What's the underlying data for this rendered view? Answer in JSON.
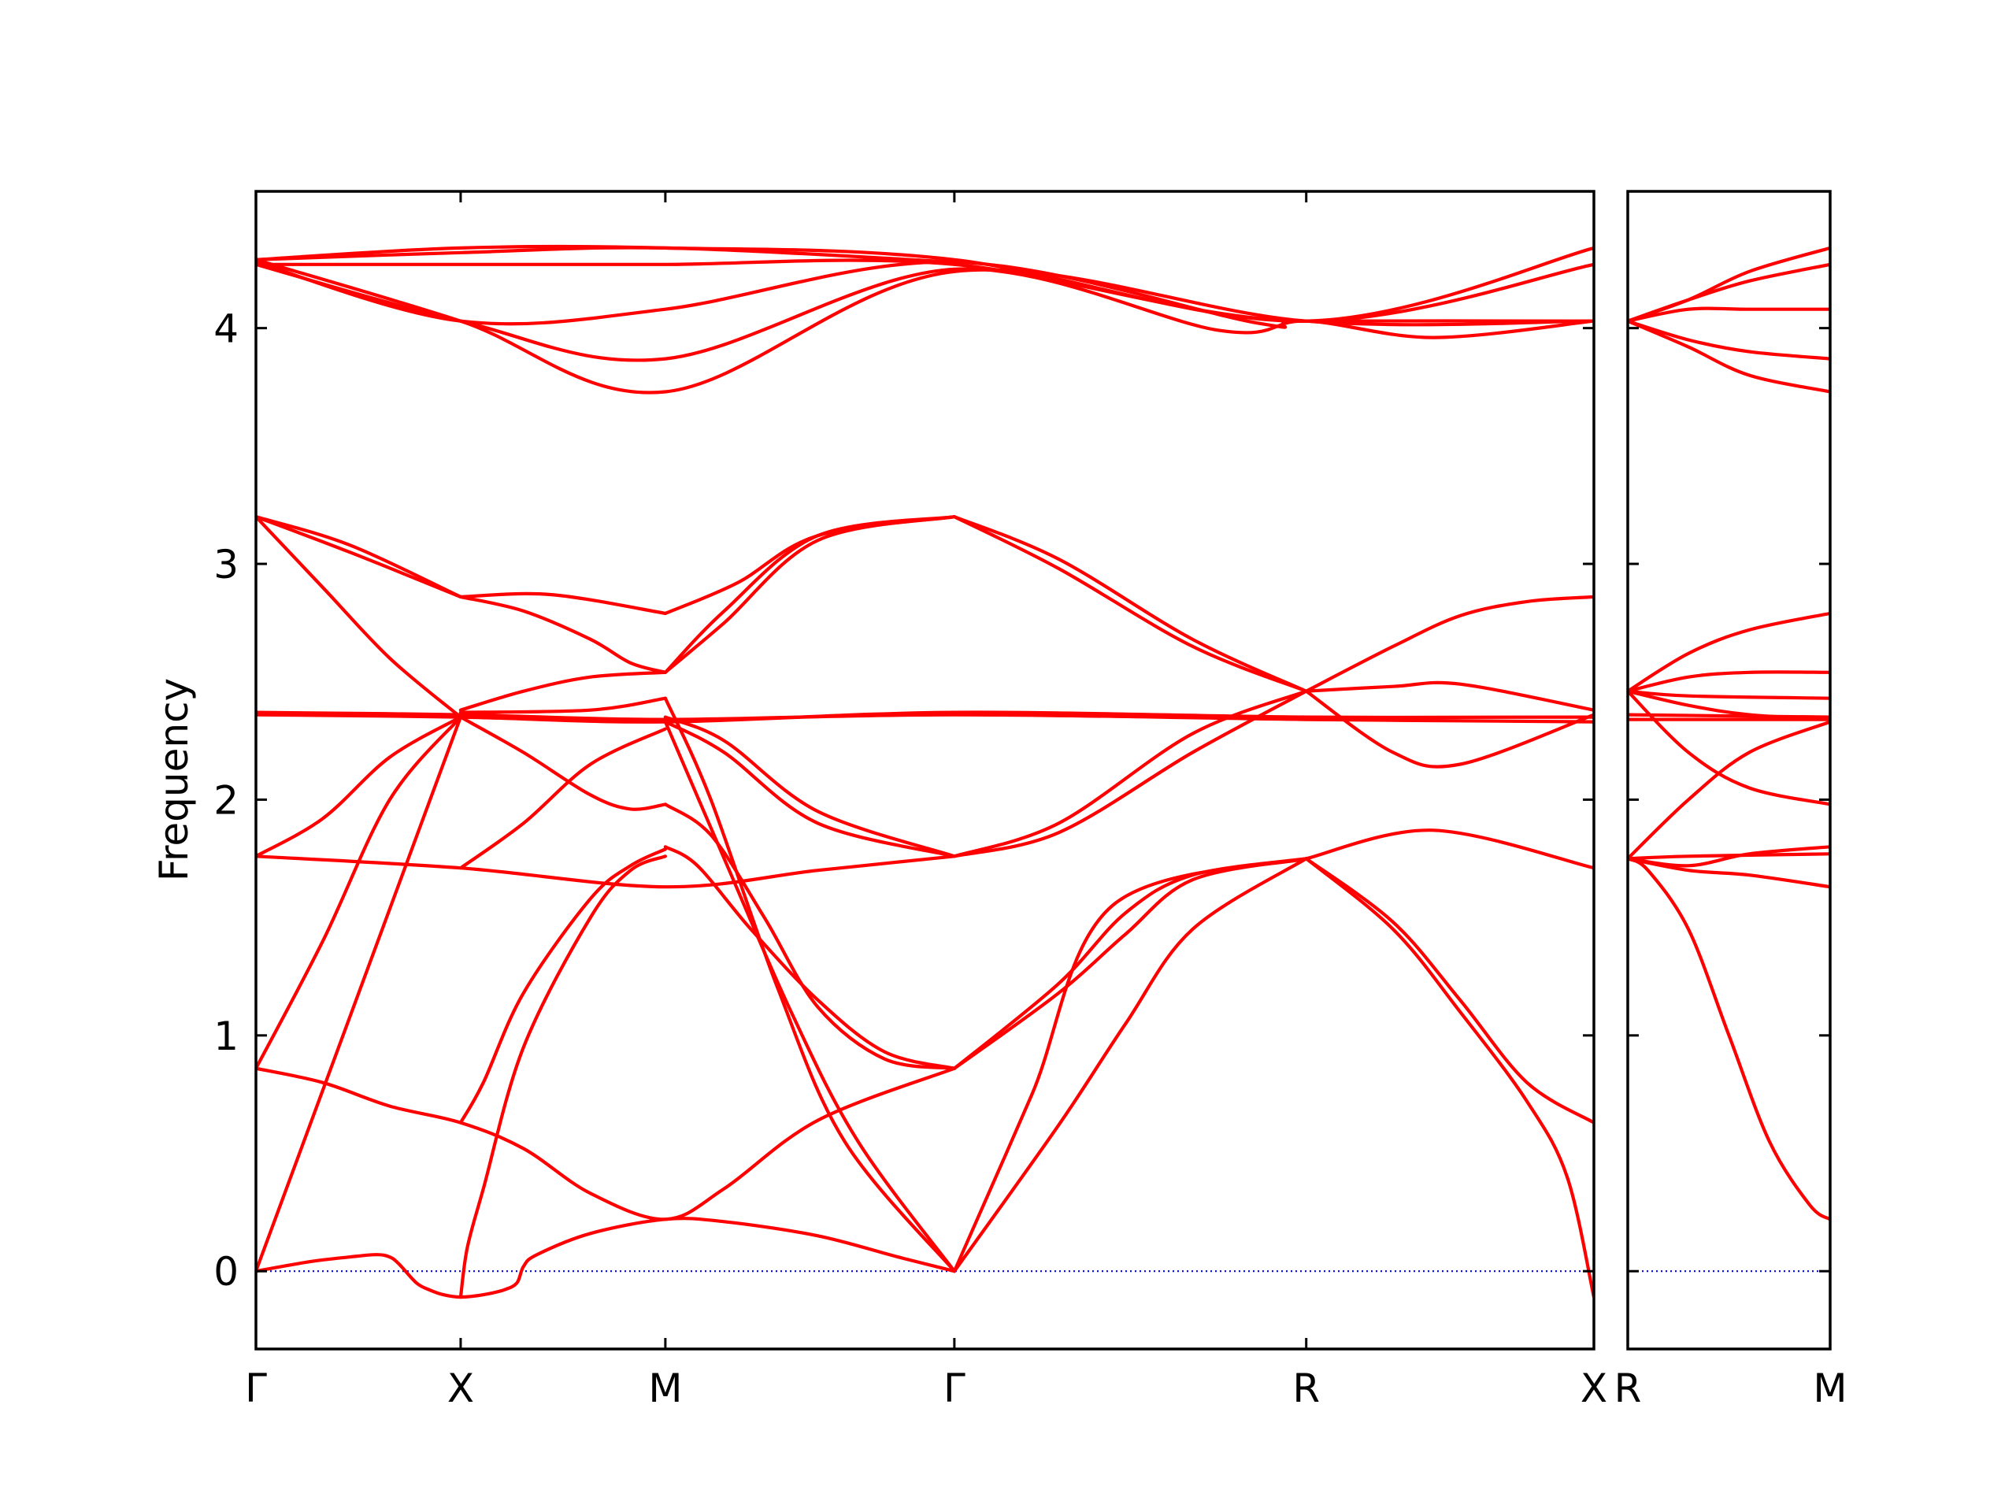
{
  "chart_data": {
    "type": "line",
    "title": "",
    "ylabel": "Frequency",
    "ylim": [
      -0.33,
      4.58
    ],
    "yticks": [
      0,
      1,
      2,
      3,
      4
    ],
    "grid": false,
    "legend": "none",
    "zero_line_color": "#0000ff",
    "line_color": "#ff0000",
    "panels": [
      {
        "xlim": [
          0,
          1.0
        ],
        "tick_positions": [
          0,
          0.153,
          0.306,
          0.522,
          0.785,
          1.0
        ],
        "tick_labels": [
          "Γ",
          "X",
          "M",
          "Γ",
          "R",
          "X"
        ],
        "series": [
          {
            "x": [
              0,
              0.04,
              0.07,
              0.09,
              0.1,
              0.107,
              0.12,
              0.13,
              0.14,
              0.153,
              0.17,
              0.185,
              0.195,
              0.2,
              0.21,
              0.25,
              0.306,
              0.35,
              0.42,
              0.48,
              0.522
            ],
            "y": [
              0,
              0.04,
              0.06,
              0.07,
              0.06,
              0.03,
              -0.05,
              -0.08,
              -0.1,
              -0.11,
              -0.1,
              -0.08,
              -0.05,
              0.02,
              0.07,
              0.16,
              0.22,
              0.21,
              0.15,
              0.06,
              0
            ]
          },
          {
            "x": [
              0,
              0.153
            ],
            "y": [
              0,
              2.35
            ]
          },
          {
            "x": [
              0,
              0.05,
              0.1,
              0.153
            ],
            "y": [
              0.86,
              1.4,
              2.0,
              2.35
            ]
          },
          {
            "x": [
              0,
              0.05,
              0.1,
              0.153,
              0.2,
              0.25,
              0.306,
              0.35,
              0.42,
              0.522
            ],
            "y": [
              0.86,
              0.8,
              0.7,
              0.63,
              0.52,
              0.33,
              0.22,
              0.35,
              0.64,
              0.86
            ]
          },
          {
            "x": [
              0.153,
              0.158,
              0.17,
              0.2,
              0.25,
              0.28,
              0.306
            ],
            "y": [
              -0.11,
              0.1,
              0.35,
              0.95,
              1.5,
              1.7,
              1.76
            ]
          },
          {
            "x": [
              0.153,
              0.17,
              0.2,
              0.25,
              0.28,
              0.306
            ],
            "y": [
              0.63,
              0.8,
              1.18,
              1.58,
              1.72,
              1.79
            ]
          },
          {
            "x": [
              0,
              0.153,
              0.306,
              0.42,
              0.522
            ],
            "y": [
              1.76,
              1.71,
              1.63,
              1.7,
              1.76
            ]
          },
          {
            "x": [
              0,
              0.05,
              0.1,
              0.153
            ],
            "y": [
              1.76,
              1.92,
              2.18,
              2.35
            ]
          },
          {
            "x": [
              0.153,
              0.2,
              0.25,
              0.306
            ],
            "y": [
              1.71,
              1.9,
              2.15,
              2.3
            ]
          },
          {
            "x": [
              0,
              0.05,
              0.1,
              0.153
            ],
            "y": [
              3.2,
              2.9,
              2.6,
              2.35
            ]
          },
          {
            "x": [
              0,
              0.07,
              0.153
            ],
            "y": [
              3.2,
              3.05,
              2.86
            ]
          },
          {
            "x": [
              0,
              0.07,
              0.153
            ],
            "y": [
              3.2,
              3.08,
              2.86
            ]
          },
          {
            "x": [
              0.153,
              0.2,
              0.25,
              0.28,
              0.306
            ],
            "y": [
              2.86,
              2.8,
              2.68,
              2.58,
              2.54
            ]
          },
          {
            "x": [
              0.153,
              0.22,
              0.306
            ],
            "y": [
              2.86,
              2.87,
              2.79
            ]
          },
          {
            "x": [
              0,
              0.153,
              0.306,
              0.522,
              0.785,
              1.0
            ],
            "y": [
              2.37,
              2.36,
              2.34,
              2.36,
              2.34,
              2.33
            ]
          },
          {
            "x": [
              0,
              0.153,
              0.306,
              0.522,
              0.785,
              1.0
            ],
            "y": [
              2.36,
              2.35,
              2.33,
              2.37,
              2.35,
              2.35
            ]
          },
          {
            "x": [
              0.153,
              0.25,
              0.306
            ],
            "y": [
              2.37,
              2.38,
              2.43
            ]
          },
          {
            "x": [
              0.153,
              0.2,
              0.25,
              0.306
            ],
            "y": [
              2.38,
              2.46,
              2.52,
              2.54
            ]
          },
          {
            "x": [
              0.153,
              0.2,
              0.25,
              0.28,
              0.306
            ],
            "y": [
              2.35,
              2.2,
              2.02,
              1.96,
              1.98
            ]
          },
          {
            "x": [
              0.306,
              0.34,
              0.38,
              0.42,
              0.47,
              0.522
            ],
            "y": [
              1.98,
              1.85,
              1.5,
              1.12,
              0.9,
              0.86
            ]
          },
          {
            "x": [
              0.306,
              0.33,
              0.37,
              0.42,
              0.47,
              0.522
            ],
            "y": [
              1.8,
              1.72,
              1.45,
              1.15,
              0.93,
              0.86
            ]
          },
          {
            "x": [
              0.306,
              0.35,
              0.4,
              0.45,
              0.522
            ],
            "y": [
              2.33,
              1.75,
              1.1,
              0.55,
              0
            ]
          },
          {
            "x": [
              0.306,
              0.34,
              0.39,
              0.44,
              0.522
            ],
            "y": [
              2.43,
              2.0,
              1.2,
              0.55,
              0
            ]
          },
          {
            "x": [
              0.306,
              0.35,
              0.42,
              0.522
            ],
            "y": [
              2.33,
              2.2,
              1.9,
              1.76
            ]
          },
          {
            "x": [
              0.306,
              0.35,
              0.42,
              0.522
            ],
            "y": [
              2.35,
              2.25,
              1.95,
              1.76
            ]
          },
          {
            "x": [
              0.306,
              0.35,
              0.42,
              0.522
            ],
            "y": [
              2.54,
              2.8,
              3.12,
              3.2
            ]
          },
          {
            "x": [
              0.306,
              0.35,
              0.42,
              0.522
            ],
            "y": [
              2.54,
              2.75,
              3.1,
              3.2
            ]
          },
          {
            "x": [
              0.306,
              0.36,
              0.42,
              0.522
            ],
            "y": [
              2.79,
              2.92,
              3.12,
              3.2
            ]
          },
          {
            "x": [
              0.522,
              0.6,
              0.65,
              0.7,
              0.785
            ],
            "y": [
              0.86,
              1.22,
              1.52,
              1.68,
              1.75
            ]
          },
          {
            "x": [
              0.522,
              0.6,
              0.65,
              0.7,
              0.785
            ],
            "y": [
              0.86,
              1.18,
              1.43,
              1.66,
              1.75
            ]
          },
          {
            "x": [
              0.522,
              0.6,
              0.65,
              0.7,
              0.785
            ],
            "y": [
              0,
              0.62,
              1.05,
              1.45,
              1.75
            ]
          },
          {
            "x": [
              0.522,
              0.58,
              0.64,
              0.785
            ],
            "y": [
              0,
              0.75,
              1.55,
              1.75
            ]
          },
          {
            "x": [
              0.522,
              0.6,
              0.7,
              0.785
            ],
            "y": [
              1.76,
              1.9,
              2.28,
              2.46
            ]
          },
          {
            "x": [
              0.522,
              0.6,
              0.7,
              0.785
            ],
            "y": [
              1.76,
              1.86,
              2.2,
              2.46
            ]
          },
          {
            "x": [
              0.522,
              0.6,
              0.7,
              0.785
            ],
            "y": [
              3.2,
              2.98,
              2.65,
              2.46
            ]
          },
          {
            "x": [
              0.522,
              0.6,
              0.7,
              0.785
            ],
            "y": [
              3.2,
              3.02,
              2.68,
              2.46
            ]
          },
          {
            "x": [
              0.785,
              0.85,
              0.9,
              0.95,
              0.98,
              1.0
            ],
            "y": [
              1.75,
              1.45,
              1.1,
              0.72,
              0.4,
              -0.11
            ]
          },
          {
            "x": [
              0.785,
              0.85,
              0.9,
              0.95,
              1.0
            ],
            "y": [
              1.75,
              1.48,
              1.15,
              0.8,
              0.63
            ]
          },
          {
            "x": [
              0.785,
              0.88,
              1.0
            ],
            "y": [
              1.75,
              1.87,
              1.71
            ]
          },
          {
            "x": [
              0.785,
              0.85,
              0.9,
              1.0
            ],
            "y": [
              2.46,
              2.48,
              2.49,
              2.38
            ]
          },
          {
            "x": [
              0.785,
              0.85,
              0.9,
              1.0
            ],
            "y": [
              2.46,
              2.2,
              2.15,
              2.36
            ]
          },
          {
            "x": [
              0.785,
              0.85,
              0.9,
              0.95,
              1.0
            ],
            "y": [
              2.46,
              2.65,
              2.78,
              2.84,
              2.86
            ]
          },
          {
            "x": [
              0,
              0.153,
              0.306,
              0.522,
              0.785,
              1.0
            ],
            "y": [
              4.27,
              4.27,
              4.27,
              4.27,
              4.03,
              4.27
            ]
          },
          {
            "x": [
              0,
              0.153,
              0.306,
              0.522,
              0.785,
              1.0
            ],
            "y": [
              4.29,
              4.34,
              4.34,
              4.29,
              4.03,
              4.34
            ]
          },
          {
            "x": [
              0,
              0.153,
              0.306,
              0.522,
              0.75,
              0.785,
              1.0
            ],
            "y": [
              4.28,
              4.03,
              4.08,
              4.28,
              4.02,
              4.03,
              4.03
            ]
          },
          {
            "x": [
              0,
              0.153,
              0.306,
              0.522,
              0.72,
              0.785,
              0.88,
              1.0
            ],
            "y": [
              4.27,
              4.03,
              3.87,
              4.25,
              3.99,
              4.03,
              3.96,
              4.03
            ]
          },
          {
            "x": [
              0,
              0.153,
              0.306,
              0.522,
              0.785,
              1.0
            ],
            "y": [
              4.29,
              4.03,
              3.73,
              4.24,
              4.03,
              4.03
            ]
          },
          {
            "x": [
              0,
              0.153,
              0.306,
              0.522
            ],
            "y": [
              4.29,
              4.32,
              4.34,
              4.28
            ]
          }
        ]
      },
      {
        "xlim": [
          0,
          1.0
        ],
        "tick_positions": [
          0,
          1.0
        ],
        "tick_labels": [
          "R",
          "M"
        ],
        "series": [
          {
            "x": [
              0,
              0.1,
              0.3,
              0.5,
              0.7,
              0.9,
              1.0
            ],
            "y": [
              1.75,
              1.7,
              1.45,
              1.0,
              0.55,
              0.28,
              0.22
            ]
          },
          {
            "x": [
              0,
              0.3,
              0.6,
              1.0
            ],
            "y": [
              1.75,
              1.7,
              1.68,
              1.63
            ]
          },
          {
            "x": [
              0,
              0.3,
              0.6,
              1.0
            ],
            "y": [
              1.75,
              1.72,
              1.77,
              1.8
            ]
          },
          {
            "x": [
              0,
              0.3,
              1.0
            ],
            "y": [
              1.75,
              1.76,
              1.77
            ]
          },
          {
            "x": [
              0,
              0.3,
              0.6,
              1.0
            ],
            "y": [
              1.75,
              2.0,
              2.2,
              2.33
            ]
          },
          {
            "x": [
              0,
              0.3,
              0.6,
              1.0
            ],
            "y": [
              2.46,
              2.2,
              2.05,
              1.98
            ]
          },
          {
            "x": [
              0,
              0.3,
              0.6,
              1.0
            ],
            "y": [
              2.46,
              2.4,
              2.36,
              2.34
            ]
          },
          {
            "x": [
              0,
              0.3,
              1.0
            ],
            "y": [
              2.46,
              2.44,
              2.43
            ]
          },
          {
            "x": [
              0,
              0.3,
              0.6,
              1.0
            ],
            "y": [
              2.46,
              2.52,
              2.54,
              2.54
            ]
          },
          {
            "x": [
              0,
              0.3,
              0.6,
              1.0
            ],
            "y": [
              2.46,
              2.62,
              2.72,
              2.79
            ]
          },
          {
            "x": [
              0,
              1.0
            ],
            "y": [
              2.34,
              2.34
            ]
          },
          {
            "x": [
              0,
              1.0
            ],
            "y": [
              2.36,
              2.35
            ]
          },
          {
            "x": [
              0,
              0.3,
              0.6,
              1.0
            ],
            "y": [
              4.03,
              4.12,
              4.24,
              4.34
            ]
          },
          {
            "x": [
              0,
              0.3,
              0.6,
              1.0
            ],
            "y": [
              4.03,
              4.12,
              4.2,
              4.27
            ]
          },
          {
            "x": [
              0,
              0.3,
              0.6,
              1.0
            ],
            "y": [
              4.03,
              4.08,
              4.08,
              4.08
            ]
          },
          {
            "x": [
              0,
              0.3,
              0.6,
              1.0
            ],
            "y": [
              4.03,
              3.95,
              3.9,
              3.87
            ]
          },
          {
            "x": [
              0,
              0.3,
              0.6,
              1.0
            ],
            "y": [
              4.03,
              3.92,
              3.8,
              3.73
            ]
          }
        ]
      }
    ]
  }
}
